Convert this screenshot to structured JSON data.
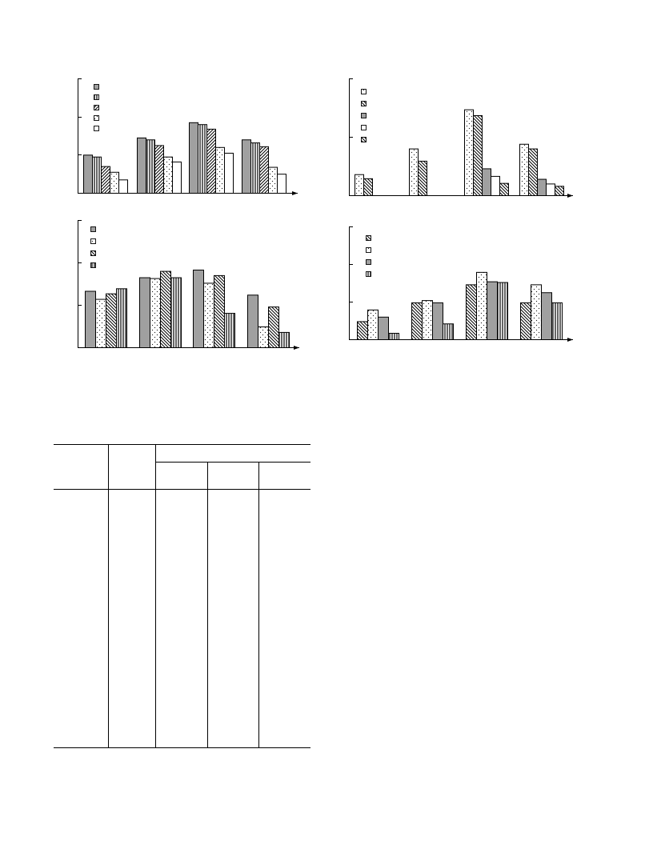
{
  "chart_data": [
    {
      "type": "bar",
      "categories": [
        "",
        "",
        "",
        ""
      ],
      "ylim": [
        0,
        3
      ],
      "legend_position": "top-left",
      "series": [
        {
          "fill": "gray",
          "values": [
            1.0,
            1.45,
            1.85,
            1.4
          ]
        },
        {
          "fill": "vertical",
          "values": [
            0.95,
            1.4,
            1.8,
            1.32
          ]
        },
        {
          "fill": "diagonal-up",
          "values": [
            0.7,
            1.25,
            1.68,
            1.22
          ]
        },
        {
          "fill": "dots",
          "values": [
            0.55,
            0.95,
            1.2,
            0.68
          ]
        },
        {
          "fill": "white",
          "values": [
            0.35,
            0.82,
            1.05,
            0.5
          ]
        }
      ]
    },
    {
      "type": "bar",
      "categories": [
        "",
        "",
        "",
        ""
      ],
      "ylim": [
        0,
        2
      ],
      "legend_position": "top-left",
      "series": [
        {
          "fill": "dots",
          "values": [
            0.36,
            0.8,
            1.47,
            0.88
          ]
        },
        {
          "fill": "diagonal-down",
          "values": [
            0.29,
            0.59,
            1.37,
            0.8
          ]
        },
        {
          "fill": "gray",
          "values": [
            0,
            0,
            0.46,
            0.28
          ]
        },
        {
          "fill": "white",
          "values": [
            0,
            0,
            0.33,
            0.2
          ]
        },
        {
          "fill": "diagonal-down",
          "values": [
            0,
            0,
            0.21,
            0.16
          ]
        }
      ]
    },
    {
      "type": "bar",
      "categories": [
        "",
        "",
        "",
        ""
      ],
      "ylim": [
        0,
        3
      ],
      "legend_position": "top-left",
      "series": [
        {
          "fill": "gray",
          "values": [
            1.33,
            1.65,
            1.83,
            1.24
          ]
        },
        {
          "fill": "dots",
          "values": [
            1.14,
            1.63,
            1.52,
            0.49
          ]
        },
        {
          "fill": "diagonal-down",
          "values": [
            1.27,
            1.8,
            1.7,
            0.96
          ]
        },
        {
          "fill": "vertical",
          "values": [
            1.39,
            1.65,
            0.81,
            0.36
          ]
        }
      ]
    },
    {
      "type": "bar",
      "categories": [
        "",
        "",
        "",
        ""
      ],
      "ylim": [
        0,
        3
      ],
      "legend_position": "top-left",
      "series": [
        {
          "fill": "diagonal-down",
          "values": [
            0.48,
            0.98,
            1.46,
            0.98
          ]
        },
        {
          "fill": "dots",
          "values": [
            0.79,
            1.04,
            1.79,
            1.46
          ]
        },
        {
          "fill": "gray",
          "values": [
            0.6,
            0.98,
            1.54,
            1.25
          ]
        },
        {
          "fill": "vertical",
          "values": [
            0.17,
            0.42,
            1.52,
            0.98
          ]
        }
      ]
    }
  ],
  "table": {
    "headers": [
      "",
      "",
      "",
      "",
      ""
    ],
    "rows": []
  }
}
